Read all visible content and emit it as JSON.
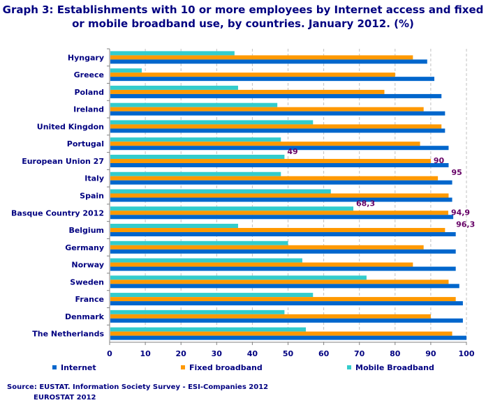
{
  "chart_data": {
    "type": "bar",
    "orientation": "horizontal",
    "title": "Graph 3: Establishments with 10 or more employees by Internet access and fixed or mobile broadband use, by countries. January 2012. (%)",
    "categories": [
      "Hyngary",
      "Greece",
      "Poland",
      "Ireland",
      "United Kingdon",
      "Portugal",
      "European Union 27",
      "Italy",
      "Spain",
      "Basque Country 2012",
      "Belgium",
      "Germany",
      "Norway",
      "Sweden",
      "France",
      "Denmark",
      "The Netherlands"
    ],
    "series": [
      {
        "name": "Mobile Broadband",
        "color": "#33CCCC",
        "values": [
          35,
          9,
          36,
          47,
          57,
          48,
          49,
          48,
          62,
          68.3,
          36,
          50,
          54,
          72,
          57,
          49,
          55
        ]
      },
      {
        "name": "Fixed broadband",
        "color": "#FF9900",
        "values": [
          85,
          80,
          77,
          88,
          93,
          87,
          90,
          92,
          95,
          94.9,
          94,
          88,
          85,
          95,
          97,
          90,
          96
        ]
      },
      {
        "name": "Internet",
        "color": "#0066CC",
        "values": [
          89,
          91,
          93,
          94,
          94,
          95,
          95,
          96,
          96,
          96.3,
          97,
          97,
          97,
          98,
          99,
          99,
          100
        ]
      }
    ],
    "data_labels": [
      {
        "category": "European Union 27",
        "series": "Mobile Broadband",
        "text": "49"
      },
      {
        "category": "European Union 27",
        "series": "Fixed broadband",
        "text": "90"
      },
      {
        "category": "European Union 27",
        "series": "Internet",
        "text": "95"
      },
      {
        "category": "Basque Country 2012",
        "series": "Mobile Broadband",
        "text": "68,3"
      },
      {
        "category": "Basque Country 2012",
        "series": "Fixed broadband",
        "text": "94,9"
      },
      {
        "category": "Basque Country 2012",
        "series": "Internet",
        "text": "96,3"
      }
    ],
    "xlim": [
      0,
      100
    ],
    "xticks": [
      0,
      10,
      20,
      30,
      40,
      50,
      60,
      70,
      80,
      90,
      100
    ],
    "grid": "vertical dashed",
    "legend": {
      "placement": "bottom",
      "order": [
        "Internet",
        "Fixed broadband",
        "Mobile Broadband"
      ]
    }
  },
  "source": {
    "line1": "Source: EUSTAT. Information Society Survey - ESI-Companies  2012",
    "line2": "EUROSTAT 2012"
  }
}
